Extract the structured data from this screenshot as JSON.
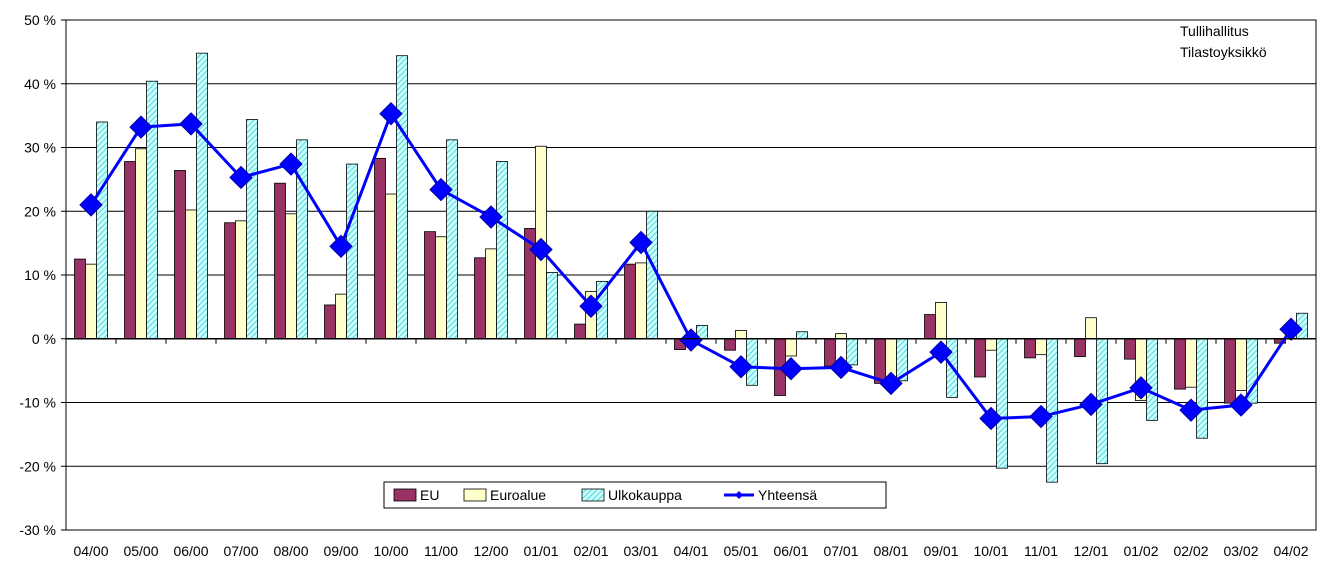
{
  "source_note": [
    "Tullihallitus",
    "Tilastoyksikkö"
  ],
  "colors": {
    "eu": "#993366",
    "euroalue": "#FFFFCC",
    "ulkokauppa_fill": "#CCFFFF",
    "ulkokauppa_hatch": "#33CCCC",
    "yhteensa": "#0000FF",
    "gridline": "#000000",
    "plot_background": "#FFFFFF"
  },
  "chart_data": {
    "type": "bar",
    "title": "",
    "xlabel": "",
    "ylabel": "",
    "ylim": [
      -30,
      50
    ],
    "y_ticks": [
      -30,
      -20,
      -10,
      0,
      10,
      20,
      30,
      40,
      50
    ],
    "y_tick_labels": [
      "-30 %",
      "-20 %",
      "-10 %",
      "0 %",
      "10 %",
      "20 %",
      "30 %",
      "40 %",
      "50 %"
    ],
    "grid": true,
    "legend_position": "bottom-center",
    "categories": [
      "04/00",
      "05/00",
      "06/00",
      "07/00",
      "08/00",
      "09/00",
      "10/00",
      "11/00",
      "12/00",
      "01/01",
      "02/01",
      "03/01",
      "04/01",
      "05/01",
      "06/01",
      "07/01",
      "08/01",
      "09/01",
      "10/01",
      "11/01",
      "12/01",
      "01/02",
      "02/02",
      "03/02",
      "04/02"
    ],
    "series": [
      {
        "name": "EU",
        "type": "bar",
        "color": "#993366",
        "values": [
          12.5,
          27.8,
          26.4,
          18.2,
          24.4,
          5.3,
          28.3,
          16.8,
          12.7,
          17.3,
          2.3,
          11.7,
          -1.7,
          -1.8,
          -8.9,
          -4.3,
          -7.0,
          3.8,
          -6.0,
          -3.0,
          -2.8,
          -3.2,
          -7.9,
          -10.1,
          -0.7
        ]
      },
      {
        "name": "Euroalue",
        "type": "bar",
        "color": "#FFFFCC",
        "values": [
          11.7,
          29.8,
          20.2,
          18.5,
          19.6,
          7.0,
          22.7,
          16.0,
          14.1,
          30.2,
          7.4,
          11.9,
          0.0,
          1.3,
          -2.7,
          0.8,
          -6.4,
          5.7,
          -1.8,
          -2.5,
          3.3,
          -9.7,
          -7.6,
          -8.1,
          0.0
        ]
      },
      {
        "name": "Ulkokauppa",
        "type": "bar",
        "color": "#CCFFFF",
        "values": [
          34.0,
          40.4,
          44.8,
          34.4,
          31.2,
          27.4,
          44.4,
          31.2,
          27.8,
          10.4,
          9.0,
          20.0,
          2.1,
          -7.3,
          1.1,
          -4.1,
          -6.6,
          -9.2,
          -20.3,
          -22.5,
          -19.6,
          -12.8,
          -15.6,
          -10.1,
          4.0
        ]
      },
      {
        "name": "Yhteensä",
        "type": "line",
        "color": "#0000FF",
        "values": [
          21.0,
          33.2,
          33.7,
          25.3,
          27.4,
          14.5,
          35.3,
          23.4,
          19.1,
          14.0,
          5.1,
          15.1,
          -0.2,
          -4.4,
          -4.7,
          -4.5,
          -7.0,
          -2.1,
          -12.5,
          -12.2,
          -10.3,
          -7.7,
          -11.2,
          -10.4,
          1.5
        ]
      }
    ]
  }
}
